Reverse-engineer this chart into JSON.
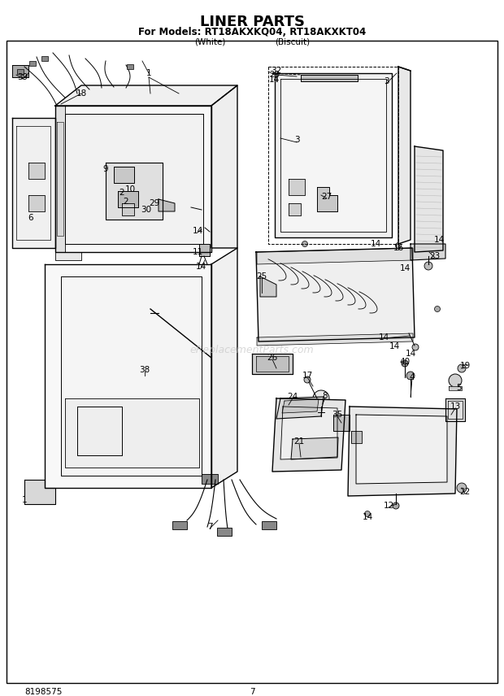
{
  "title_line1": "LINER PARTS",
  "title_line2": "For Models: RT18AKXKQ04, RT18AKXKT04",
  "title_line3_left": "(White)",
  "title_line3_right": "(Biscuit)",
  "bottom_left": "8198575",
  "bottom_center": "7",
  "bg_color": "#ffffff",
  "watermark_text": "eReplacementParts.com",
  "fig_width": 6.2,
  "fig_height": 8.56,
  "dpi": 100
}
